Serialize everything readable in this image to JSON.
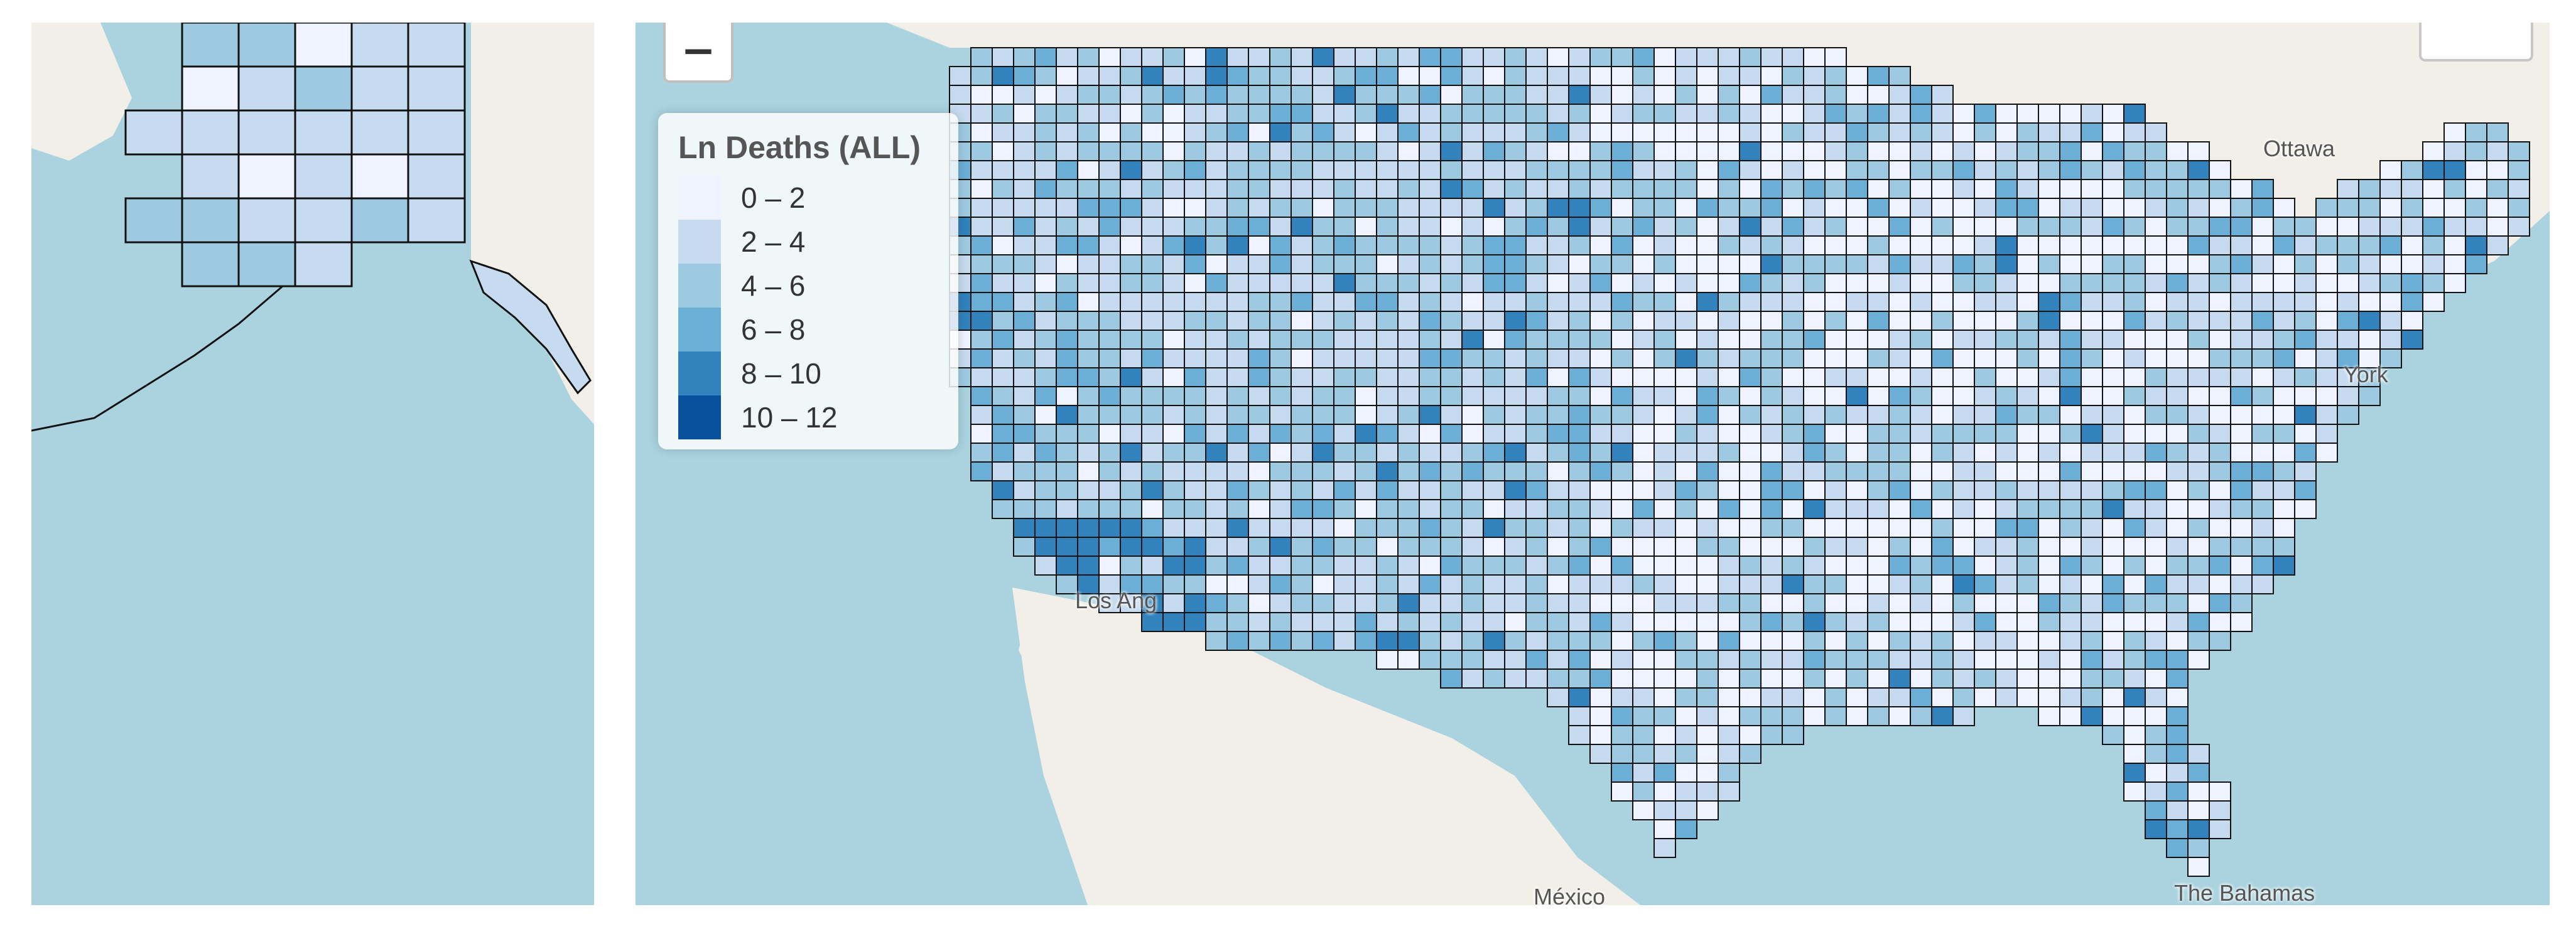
{
  "legend": {
    "title": "Ln Deaths (ALL)",
    "bins": [
      {
        "label": "0 – 2",
        "color": "#eff3ff"
      },
      {
        "label": "2 – 4",
        "color": "#c6dbef"
      },
      {
        "label": "4 – 6",
        "color": "#9ecae1"
      },
      {
        "label": "6 – 8",
        "color": "#6baed6"
      },
      {
        "label": "8 – 10",
        "color": "#3182bd"
      },
      {
        "label": "10 – 12",
        "color": "#08519c"
      }
    ]
  },
  "controls": {
    "zoom_out_symbol": "−"
  },
  "place_labels": {
    "ottawa": "Ottawa",
    "york": "York",
    "los_angeles": "Los Ang",
    "mexico": "México",
    "bahamas": "The Bahamas"
  },
  "colors": {
    "water": "#aad3df",
    "land": "#f2efe9",
    "county_border": "#111111"
  }
}
